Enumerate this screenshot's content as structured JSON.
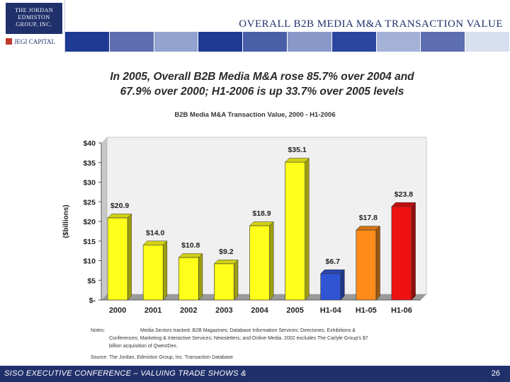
{
  "header": {
    "logo_lines": [
      "THE JORDAN",
      "EDMISTON",
      "GROUP, INC."
    ],
    "logo_sub": "JEGI CAPITAL",
    "slide_title": "OVERALL B2B MEDIA M&A TRANSACTION VALUE",
    "band_colors": [
      "#1f3a93",
      "#5d6fb0",
      "#93a3cf",
      "#1f3a93",
      "#4a5fa8",
      "#8898c9",
      "#2a469e",
      "#a4b2d8",
      "#5d6fb0",
      "#d8dfee"
    ]
  },
  "headline": {
    "line1": "In 2005, Overall B2B Media M&A rose 85.7% over 2004 and",
    "line2": "67.9% over 2000; H1-2006 is up 33.7% over 2005 levels"
  },
  "chart_data": {
    "type": "bar",
    "title": "B2B Media M&A Transaction Value, 2000 - H1-2006",
    "ylabel": "($billions)",
    "xlabel": "",
    "ylim": [
      0,
      40
    ],
    "yticks": [
      0,
      5,
      10,
      15,
      20,
      25,
      30,
      35,
      40
    ],
    "ytick_labels": [
      "$-",
      "$5",
      "$10",
      "$15",
      "$20",
      "$25",
      "$30",
      "$35",
      "$40"
    ],
    "categories": [
      "2000",
      "2001",
      "2002",
      "2003",
      "2004",
      "2005",
      "H1-04",
      "H1-05",
      "H1-06"
    ],
    "values": [
      20.9,
      14.0,
      10.8,
      9.2,
      18.9,
      35.1,
      6.7,
      17.8,
      23.8
    ],
    "data_labels": [
      "$20.9",
      "$14.0",
      "$10.8",
      "$9.2",
      "$18.9",
      "$35.1",
      "$6.7",
      "$17.8",
      "$23.8"
    ],
    "colors": [
      "#ffff1a",
      "#ffff1a",
      "#ffff1a",
      "#ffff1a",
      "#ffff1a",
      "#ffff1a",
      "#2f55d4",
      "#ff8c1a",
      "#ee1111"
    ],
    "grid": false,
    "background": "#f0f0f0"
  },
  "notes": {
    "label": "Notes:",
    "line1": "Media Sectors tracked: B2B Magazines; Database Information Services; Directories; Exhibitions &",
    "line2": "Conferences; Marketing & Interactive Services; Newsletters; and Online Media. 2002 excludes The Carlyle Group's $7",
    "line3": "billion acquisition of QwestDex."
  },
  "source": "Source: The Jordan, Edmiston Group, Inc. Transaction Database",
  "footer": {
    "text": "SISO EXECUTIVE CONFERENCE – VALUING TRADE SHOWS &",
    "page_number": "26"
  }
}
